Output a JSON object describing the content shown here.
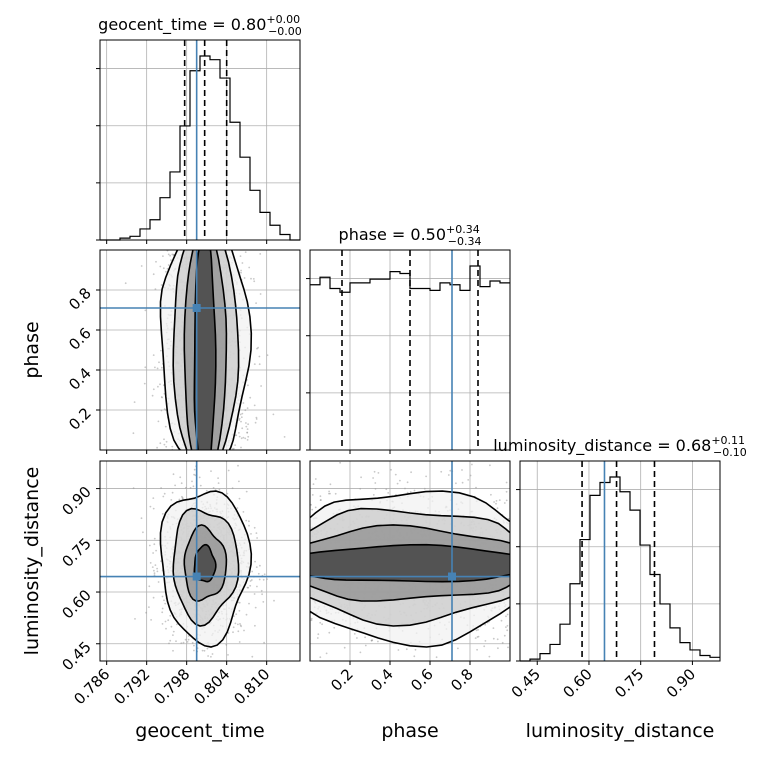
{
  "chart_data": {
    "type": "corner",
    "parameters": [
      {
        "name": "geocent_time",
        "range": [
          0.785,
          0.815
        ],
        "ticks": [
          0.786,
          0.792,
          0.798,
          0.804,
          0.81
        ],
        "tick_labels": [
          "0.786",
          "0.792",
          "0.798",
          "0.804",
          "0.810"
        ],
        "truth": 0.7995,
        "quantiles": [
          0.7977,
          0.8007,
          0.804
        ],
        "title": {
          "main": "geocent_time = 0.80",
          "sup": "+0.00",
          "sub": "−0.00"
        },
        "hist": {
          "edges_start": 0.785,
          "bin_width": 0.0015,
          "counts": [
            0,
            0,
            1,
            2,
            6,
            11,
            23,
            37,
            62,
            92,
            100,
            98,
            88,
            64,
            45,
            27,
            15,
            8,
            3,
            0
          ]
        }
      },
      {
        "name": "phase",
        "range": [
          0.0,
          1.0
        ],
        "ticks": [
          0.2,
          0.4,
          0.6,
          0.8
        ],
        "tick_labels": [
          "0.2",
          "0.4",
          "0.6",
          "0.8"
        ],
        "truth": 0.71,
        "quantiles": [
          0.16,
          0.5,
          0.84
        ],
        "title": {
          "main": "phase = 0.50",
          "sup": "+0.34",
          "sub": "−0.34"
        },
        "hist": {
          "edges_start": 0.0,
          "bin_width": 0.05,
          "counts": [
            88,
            92,
            86,
            84,
            89,
            89,
            91,
            91,
            95,
            94,
            86,
            86,
            85,
            89,
            88,
            85,
            98,
            87,
            90,
            89
          ]
        }
      },
      {
        "name": "luminosity_distance",
        "range": [
          0.4,
          0.98
        ],
        "ticks": [
          0.45,
          0.6,
          0.75,
          0.9
        ],
        "tick_labels": [
          "0.45",
          "0.60",
          "0.75",
          "0.90"
        ],
        "truth": 0.645,
        "quantiles": [
          0.58,
          0.68,
          0.79
        ],
        "title": {
          "main": "luminosity_distance = 0.68",
          "sup": "+0.11",
          "sub": "−0.10"
        },
        "hist": {
          "edges_start": 0.4,
          "bin_width": 0.029,
          "counts": [
            0,
            1,
            4,
            9,
            20,
            42,
            66,
            90,
            97,
            100,
            92,
            82,
            63,
            47,
            31,
            18,
            10,
            6,
            3,
            2
          ]
        }
      }
    ],
    "y_labels": [
      "phase",
      "luminosity_distance"
    ],
    "contour_levels": 4,
    "colors": {
      "truth": "#4682b4",
      "hist": "#000000",
      "points": "#9a9a9a"
    }
  }
}
